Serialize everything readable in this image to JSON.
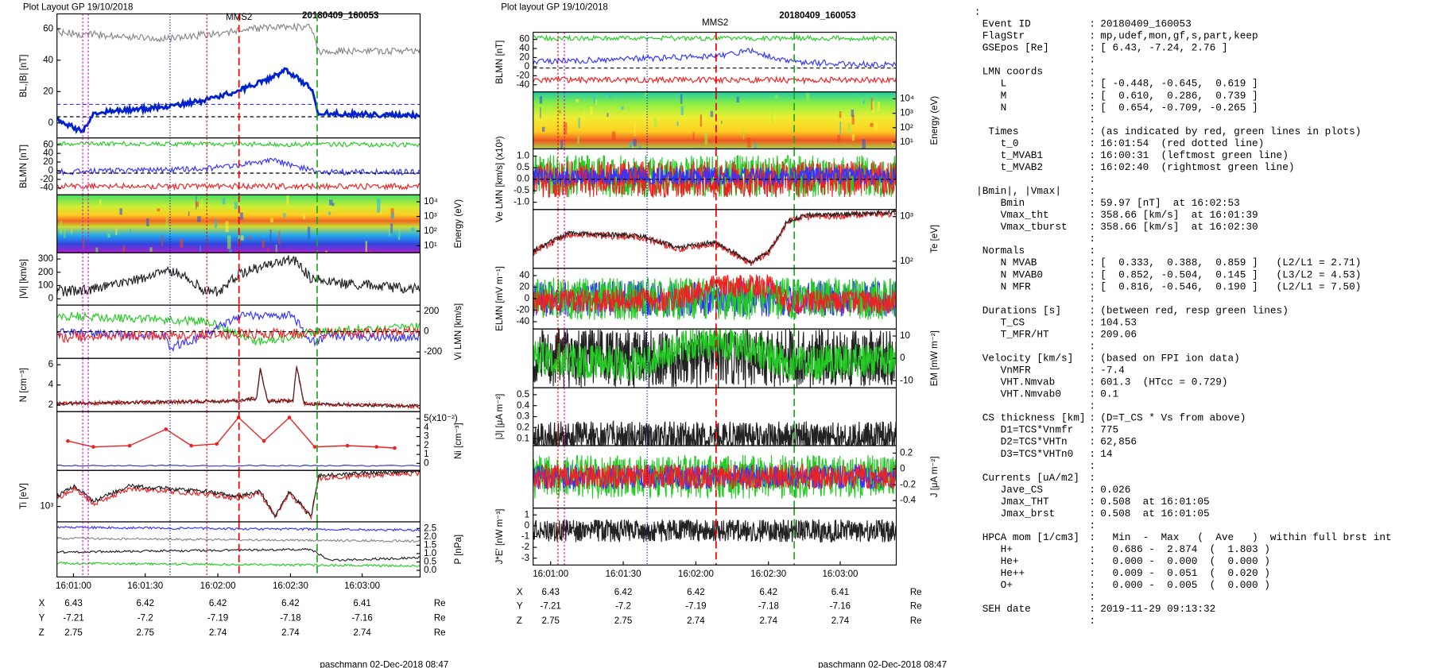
{
  "figures": [
    {
      "header": "Plot Layout GP 19/10/2018",
      "title": "MMS2",
      "event": "20180409_160053",
      "panels": [
        {
          "ylabel": "BL,|B| [nT]",
          "yticks": [
            "60",
            "40",
            "20",
            "0"
          ]
        },
        {
          "ylabel": "BLMN [nT]",
          "yticks": [
            "60",
            "40",
            "20",
            "0",
            "-20",
            "-40"
          ]
        },
        {
          "y2label": "Energy (eV)",
          "y2ticks": [
            "10⁴",
            "10³",
            "10²",
            "10¹"
          ]
        },
        {
          "ylabel": "|Vi| [km/s]",
          "yticks": [
            "300",
            "200",
            "100",
            "0"
          ]
        },
        {
          "y2label": "Vi LMN [km/s]",
          "y2ticks": [
            "200",
            "0",
            "-200"
          ]
        },
        {
          "ylabel": "N [cm⁻³]",
          "yticks": [
            "6",
            "4",
            "2"
          ]
        },
        {
          "y2label": "Ni [cm⁻³]",
          "y2ticks": [
            "5(x10⁻²)",
            "4",
            "3",
            "2",
            "1",
            "0"
          ]
        },
        {
          "ylabel": "Ti [eV]",
          "yticks": [
            "10³"
          ]
        },
        {
          "y2label": "P [nPa]",
          "y2ticks": [
            "2.5",
            "2.0",
            "1.5",
            "1.0",
            "0.5",
            "0.0"
          ]
        }
      ],
      "xticks": [
        "16:01:00",
        "16:01:30",
        "16:02:00",
        "16:02:30",
        "16:03:00"
      ],
      "positions": [
        [
          "X",
          "6.43",
          "6.42",
          "6.42",
          "6.42",
          "6.41",
          "Re"
        ],
        [
          "Y",
          "-7.21",
          "-7.2",
          "-7.19",
          "-7.18",
          "-7.16",
          "Re"
        ],
        [
          "Z",
          "2.75",
          "2.75",
          "2.74",
          "2.74",
          "2.74",
          "Re"
        ]
      ],
      "footer": "paschmann 02-Dec-2018 08:47"
    },
    {
      "header": "Plot layout GP 19/10/2018",
      "title": "MMS2",
      "event": "20180409_160053",
      "panels": [
        {
          "ylabel": "BLMN [nT]",
          "yticks": [
            "60",
            "40",
            "20",
            "0",
            "-20",
            "-40"
          ]
        },
        {
          "y2label": "Energy (eV)",
          "y2ticks": [
            "10⁴",
            "10³",
            "10²",
            "10¹"
          ]
        },
        {
          "ylabel": "Ve LMN [km/s] (x10³)",
          "yticks": [
            "1.0",
            "0.5",
            "0.0",
            "-0.5",
            "-1.0"
          ]
        },
        {
          "y2label": "Te [eV]",
          "y2ticks": [
            "10³",
            "10²"
          ]
        },
        {
          "ylabel": "ELMN [mV m⁻¹]",
          "yticks": [
            "40",
            "20",
            "0",
            "-20",
            "-40"
          ]
        },
        {
          "y2label": "EM [mW m⁻²]",
          "y2ticks": [
            "10",
            "0",
            "-10"
          ]
        },
        {
          "ylabel": "|J| [μA m⁻²]",
          "yticks": [
            "0.5",
            "0.4",
            "0.3",
            "0.2",
            "0.1"
          ]
        },
        {
          "y2label": "J [μA m⁻²]",
          "y2ticks": [
            "0.2",
            "0",
            "-0.2",
            "-0.4"
          ]
        },
        {
          "ylabel": "J*E' [nW m⁻³]",
          "yticks": [
            "1",
            "0",
            "-1",
            "-2",
            "-3"
          ]
        }
      ],
      "xticks": [
        "16:01:00",
        "16:01:30",
        "16:02:00",
        "16:02:30",
        "16:03:00"
      ],
      "positions": [
        [
          "X",
          "6.43",
          "6.42",
          "6.42",
          "6.42",
          "6.41",
          "Re"
        ],
        [
          "Y",
          "-7.21",
          "-7.2",
          "-7.19",
          "-7.18",
          "-7.16",
          "Re"
        ],
        [
          "Z",
          "2.75",
          "2.75",
          "2.74",
          "2.74",
          "2.74",
          "Re"
        ]
      ],
      "footer": "paschmann 02-Dec-2018 08:47"
    }
  ],
  "summary": {
    "sections": [
      [
        [
          " Event ID",
          "20180409_160053"
        ],
        [
          " FlagStr",
          "mp,udef,mon,gf,s,part,keep"
        ],
        [
          " GSEpos [Re]",
          "[ 6.43, -7.24, 2.76 ]"
        ]
      ],
      [
        [
          " LMN coords"
        ],
        [
          "    L",
          "[ -0.448, -0.645,  0.619 ]"
        ],
        [
          "    M",
          "[  0.610,  0.286,  0.739 ]"
        ],
        [
          "    N",
          "[  0.654, -0.709, -0.265 ]"
        ]
      ],
      [
        [
          "  Times",
          "(as indicated by red, green lines in plots)"
        ],
        [
          "    t_0",
          "16:01:54  (red dotted line)"
        ],
        [
          "    t_MVAB1",
          "16:00:31  (leftmost green line)"
        ],
        [
          "    t_MVAB2",
          "16:02:40  (rightmost green line)"
        ]
      ],
      [
        [
          "|Bmin|, |Vmax|"
        ],
        [
          "    Bmin",
          "59.97 [nT]  at 16:02:53"
        ],
        [
          "    Vmax_tht",
          "358.66 [km/s]  at 16:01:39"
        ],
        [
          "    Vmax_tburst",
          "358.66 [km/s]  at 16:02:30"
        ]
      ],
      [
        [
          " Normals"
        ],
        [
          "    N MVAB",
          "[  0.333,  0.388,  0.859 ]   (L2/L1 = 2.71)"
        ],
        [
          "    N MVAB0",
          "[  0.852, -0.504,  0.145 ]   (L3/L2 = 4.53)"
        ],
        [
          "    N MFR",
          "[  0.816, -0.546,  0.190 ]   (L2/L1 = 7.50)"
        ]
      ],
      [
        [
          " Durations [s]",
          "(between red, resp green lines)"
        ],
        [
          "    T_CS",
          "104.53"
        ],
        [
          "    T_MFR/HT",
          "209.06"
        ]
      ],
      [
        [
          " Velocity [km/s]",
          "(based on FPI ion data)"
        ],
        [
          "    VnMFR",
          "-7.4"
        ],
        [
          "    VHT.Nmvab",
          "601.3  (HTcc = 0.729)"
        ],
        [
          "    VHT.Nmvab0",
          "0.1"
        ]
      ],
      [
        [
          " CS thickness [km]",
          "(D=T_CS * Vs from above)"
        ],
        [
          "    D1=TCS*Vnmfr",
          "775"
        ],
        [
          "    D2=TCS*VHTn",
          "62,856"
        ],
        [
          "    D3=TCS*VHTn0",
          "14"
        ]
      ],
      [
        [
          " Currents [uA/m2]"
        ],
        [
          "    Jave_CS",
          "0.026"
        ],
        [
          "    Jmax_THT",
          "0.508  at 16:01:05"
        ],
        [
          "    Jmax_brst",
          "0.508  at 16:01:05"
        ]
      ],
      [
        [
          " HPCA mom [1/cm3]",
          "  Min  -  Max   (  Ave   )  within full brst int"
        ],
        [
          "    H+",
          "  0.686 -  2.874  (  1.803 )"
        ],
        [
          "    He+",
          "  0.000 -  0.000  (  0.000 )"
        ],
        [
          "    He++",
          "  0.009 -  0.051  (  0.020 )"
        ],
        [
          "    O+",
          "  0.000 -  0.005  (  0.000 )"
        ]
      ],
      [
        [
          " SEH date",
          "2019-11-29 09:13:32"
        ]
      ]
    ]
  }
}
